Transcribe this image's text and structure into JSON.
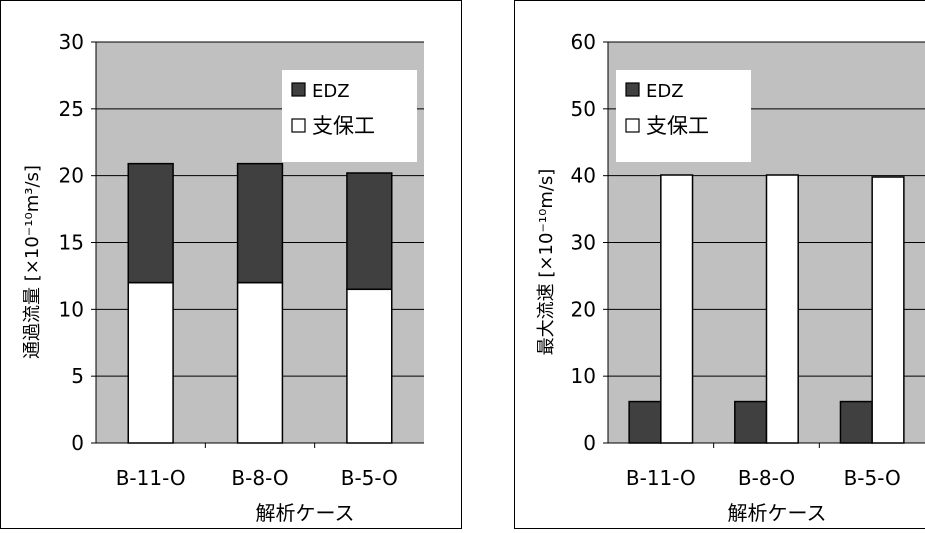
{
  "chart_data": [
    {
      "type": "bar",
      "stacked": true,
      "categories": [
        "B-11-O",
        "B-8-O",
        "B-5-O"
      ],
      "series": [
        {
          "name": "支保工",
          "values": [
            12.0,
            12.0,
            11.5
          ],
          "color": "#ffffff"
        },
        {
          "name": "EDZ",
          "values": [
            8.9,
            8.9,
            8.7
          ],
          "color": "#404040"
        }
      ],
      "xlabel": "解析ケース",
      "ylabel": "通過流量 [×10⁻¹⁰m³/s]",
      "ylim": [
        0,
        30
      ],
      "yticks": [
        0,
        5,
        10,
        15,
        20,
        25,
        30
      ],
      "grid": true,
      "plot_background": "#c0c0c0",
      "legend": {
        "position": "top-right",
        "entries": [
          "EDZ",
          "支保工"
        ]
      }
    },
    {
      "type": "bar",
      "stacked": false,
      "categories": [
        "B-11-O",
        "B-8-O",
        "B-5-O"
      ],
      "series": [
        {
          "name": "EDZ",
          "values": [
            6.2,
            6.2,
            6.2
          ],
          "color": "#404040"
        },
        {
          "name": "支保工",
          "values": [
            40.1,
            40.1,
            39.8
          ],
          "color": "#ffffff"
        }
      ],
      "xlabel": "解析ケース",
      "ylabel": "最大流速 [×10⁻¹⁰m/s]",
      "ylim": [
        0,
        60
      ],
      "yticks": [
        0,
        10,
        20,
        30,
        40,
        50,
        60
      ],
      "grid": true,
      "plot_background": "#c0c0c0",
      "legend": {
        "position": "top-left",
        "entries": [
          "EDZ",
          "支保工"
        ]
      }
    }
  ]
}
